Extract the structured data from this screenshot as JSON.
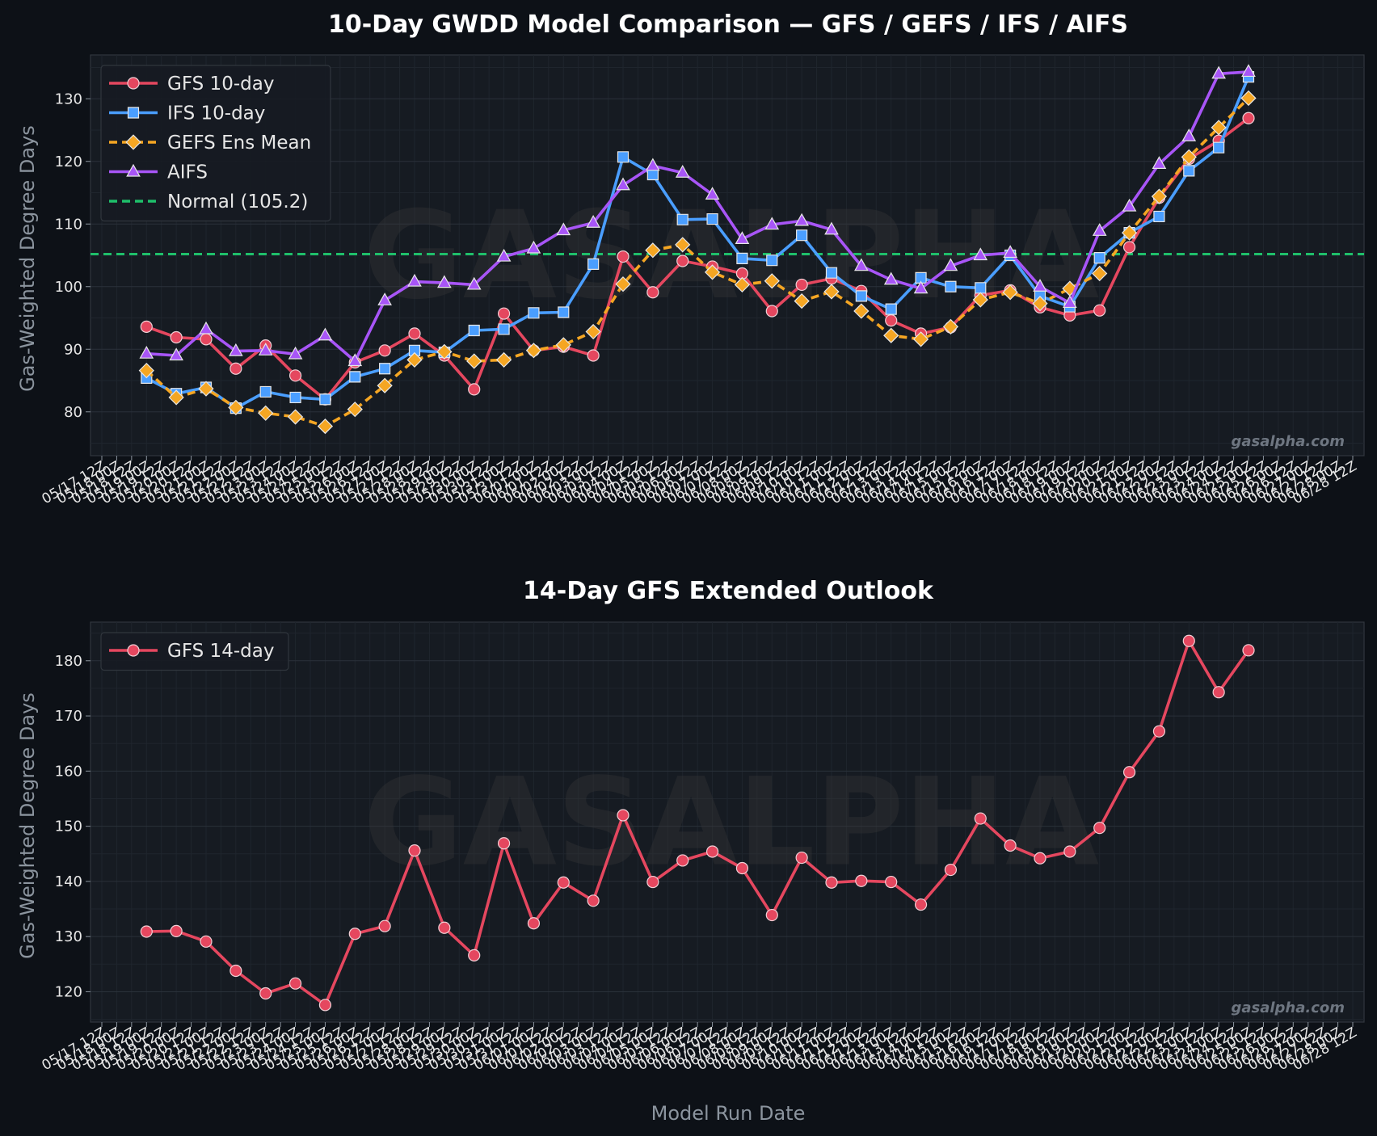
{
  "watermark": "GASALPHA",
  "site": "gasalpha.com",
  "xlabel": "Model Run Date",
  "x_dates": [
    "05/17 12Z",
    "05/18 00Z",
    "05/18 12Z",
    "05/19 00Z",
    "05/19 12Z",
    "05/20 00Z",
    "05/20 12Z",
    "05/21 00Z",
    "05/21 12Z",
    "05/22 00Z",
    "05/22 12Z",
    "05/23 00Z",
    "05/23 12Z",
    "05/24 00Z",
    "05/24 12Z",
    "05/25 00Z",
    "05/25 12Z",
    "05/26 00Z",
    "05/26 12Z",
    "05/27 00Z",
    "05/27 12Z",
    "05/28 00Z",
    "05/28 12Z",
    "05/29 00Z",
    "05/29 12Z",
    "05/30 00Z",
    "05/30 12Z",
    "05/31 00Z",
    "05/31 12Z",
    "06/01 00Z",
    "06/01 12Z",
    "06/02 00Z",
    "06/02 12Z",
    "06/03 00Z",
    "06/03 12Z",
    "06/04 00Z",
    "06/04 12Z",
    "06/05 00Z",
    "06/05 12Z",
    "06/06 00Z",
    "06/06 12Z",
    "06/07 00Z",
    "06/07 12Z",
    "06/08 00Z",
    "06/08 12Z",
    "06/09 00Z",
    "06/09 12Z",
    "06/10 00Z",
    "06/10 12Z",
    "06/11 00Z",
    "06/11 12Z",
    "06/12 00Z",
    "06/12 12Z",
    "06/13 00Z",
    "06/13 12Z",
    "06/14 00Z",
    "06/14 12Z",
    "06/15 00Z",
    "06/15 12Z",
    "06/16 00Z",
    "06/16 12Z",
    "06/17 00Z",
    "06/17 12Z",
    "06/18 00Z",
    "06/18 12Z",
    "06/19 00Z",
    "06/19 12Z",
    "06/20 00Z",
    "06/20 12Z",
    "06/21 00Z",
    "06/21 12Z",
    "06/22 00Z",
    "06/22 12Z",
    "06/23 00Z",
    "06/23 12Z",
    "06/24 00Z",
    "06/24 12Z",
    "06/25 00Z",
    "06/25 12Z",
    "06/26 00Z",
    "06/26 12Z",
    "06/27 00Z",
    "06/27 12Z",
    "06/28 00Z",
    "06/28 12Z"
  ],
  "chart_data": [
    {
      "type": "line",
      "title": "10-Day GWDD Model Comparison — GFS / GEFS / IFS / AIFS",
      "ylabel": "Gas-Weighted Degree Days",
      "ylim": [
        73,
        137
      ],
      "yticks": [
        80,
        90,
        100,
        110,
        120,
        130
      ],
      "grid": true,
      "legend_position": "top-left",
      "x_index": [
        3,
        5,
        7,
        9,
        11,
        13,
        15,
        17,
        19,
        21,
        23,
        25,
        27,
        29,
        31,
        33,
        35,
        37,
        39,
        41,
        43,
        45,
        47,
        49,
        51,
        53,
        55,
        57,
        59,
        61,
        63,
        65,
        67,
        69,
        71,
        73,
        75,
        77
      ],
      "series": [
        {
          "name": "GFS 10-day",
          "color": "#e5475f",
          "marker": "circle",
          "dash": false,
          "values": [
            93.6,
            91.9,
            91.6,
            86.9,
            90.6,
            85.8,
            82.0,
            87.9,
            89.8,
            92.5,
            89.0,
            83.6,
            95.7,
            89.8,
            90.4,
            89.0,
            104.8,
            99.1,
            104.1,
            103.2,
            102.1,
            96.1,
            100.3,
            101.3,
            99.3,
            94.6,
            92.5,
            93.5,
            98.6,
            99.4,
            96.7,
            95.4,
            96.2,
            106.3,
            114.2,
            120.4,
            123.3,
            126.9
          ]
        },
        {
          "name": "IFS 10-day",
          "color": "#4a9eff",
          "marker": "square",
          "dash": false,
          "values": [
            85.4,
            82.9,
            83.9,
            80.6,
            83.2,
            82.3,
            82.0,
            85.6,
            86.9,
            89.8,
            89.5,
            93.0,
            93.2,
            95.8,
            95.9,
            103.6,
            120.7,
            117.9,
            110.7,
            110.8,
            104.5,
            104.2,
            108.2,
            102.2,
            98.5,
            96.4,
            101.4,
            100.0,
            99.8,
            105.0,
            98.5,
            96.8,
            104.6,
            108.6,
            111.2,
            118.5,
            122.2,
            133.5
          ]
        },
        {
          "name": "GEFS Ens Mean",
          "color": "#f5a623",
          "marker": "diamond",
          "dash": true,
          "values": [
            86.6,
            82.3,
            83.7,
            80.7,
            79.8,
            79.2,
            77.7,
            80.4,
            84.2,
            88.3,
            89.6,
            88.1,
            88.3,
            89.8,
            90.7,
            92.8,
            100.4,
            105.8,
            106.7,
            102.3,
            100.3,
            100.9,
            97.7,
            99.2,
            96.1,
            92.2,
            91.6,
            93.6,
            97.9,
            99.1,
            97.3,
            99.7,
            102.1,
            108.6,
            114.4,
            120.7,
            125.4,
            130.1
          ]
        },
        {
          "name": "AIFS",
          "color": "#a855f7",
          "marker": "triangle",
          "dash": false,
          "values": [
            89.3,
            89.0,
            93.2,
            89.7,
            89.8,
            89.2,
            92.2,
            88.1,
            97.8,
            100.8,
            100.6,
            100.3,
            104.8,
            106.1,
            109.0,
            110.2,
            116.2,
            119.3,
            118.2,
            114.7,
            107.6,
            109.9,
            110.5,
            109.1,
            103.3,
            101.1,
            99.7,
            103.3,
            105.0,
            105.4,
            100.0,
            97.4,
            108.9,
            112.8,
            119.6,
            124.0,
            134.0,
            134.3
          ]
        }
      ],
      "reference_line": {
        "name": "Normal (105.2)",
        "value": 105.2,
        "color": "#1fbf6a"
      }
    },
    {
      "type": "line",
      "title": "14-Day GFS Extended Outlook",
      "ylabel": "Gas-Weighted Degree Days",
      "ylim": [
        114.5,
        187
      ],
      "yticks": [
        120,
        130,
        140,
        150,
        160,
        170,
        180
      ],
      "grid": true,
      "legend_position": "top-left",
      "x_index": [
        3,
        5,
        7,
        9,
        11,
        13,
        15,
        17,
        19,
        21,
        23,
        25,
        27,
        29,
        31,
        33,
        35,
        37,
        39,
        41,
        43,
        45,
        47,
        49,
        51,
        53,
        55,
        57,
        59,
        61,
        63,
        65,
        67,
        69,
        71,
        73,
        75,
        77
      ],
      "series": [
        {
          "name": "GFS 14-day",
          "color": "#e5475f",
          "marker": "circle",
          "dash": false,
          "values": [
            130.9,
            131.0,
            129.1,
            123.8,
            119.7,
            121.5,
            117.6,
            130.5,
            131.9,
            145.6,
            131.6,
            126.6,
            146.9,
            132.4,
            139.8,
            136.5,
            152.0,
            139.9,
            143.8,
            145.4,
            142.4,
            133.9,
            144.3,
            139.8,
            140.1,
            139.9,
            135.8,
            142.1,
            151.4,
            146.5,
            144.2,
            145.4,
            149.7,
            159.8,
            167.2,
            183.6,
            174.3,
            181.9
          ]
        }
      ]
    }
  ]
}
